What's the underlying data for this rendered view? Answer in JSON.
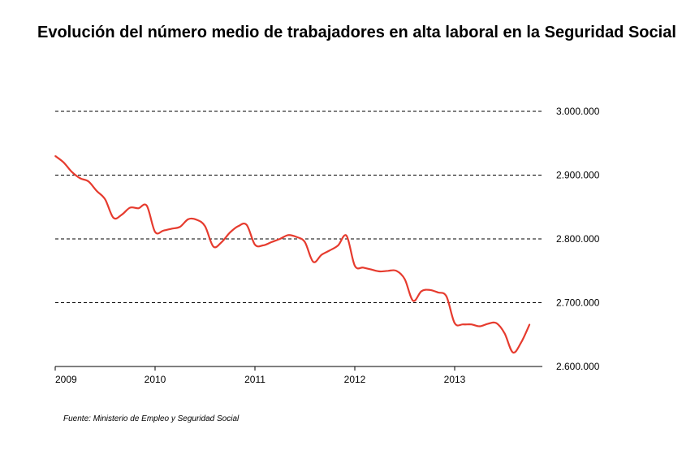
{
  "chart_data": {
    "type": "line",
    "title": "Evolución del número medio de trabajadores en alta laboral en la Seguridad Social",
    "xlabel": "",
    "ylabel": "",
    "x_tick_labels": [
      "2009",
      "2010",
      "2011",
      "2012",
      "2013"
    ],
    "y_tick_labels": [
      "2.600.000",
      "2.700.000",
      "2.800.000",
      "2.900.000",
      "3.000.000"
    ],
    "ylim": [
      2600000,
      3000000
    ],
    "x_start_year": 2009,
    "grid": "horizontal dashed",
    "series": [
      {
        "color": "#e63b2e",
        "points": [
          [
            "2009-01",
            2930000
          ],
          [
            "2009-02",
            2920000
          ],
          [
            "2009-03",
            2905000
          ],
          [
            "2009-04",
            2895000
          ],
          [
            "2009-05",
            2890000
          ],
          [
            "2009-06",
            2875000
          ],
          [
            "2009-07",
            2862000
          ],
          [
            "2009-08",
            2833000
          ],
          [
            "2009-09",
            2838000
          ],
          [
            "2009-10",
            2849000
          ],
          [
            "2009-11",
            2848000
          ],
          [
            "2009-12",
            2852000
          ],
          [
            "2010-01",
            2811000
          ],
          [
            "2010-02",
            2813000
          ],
          [
            "2010-03",
            2816000
          ],
          [
            "2010-04",
            2819000
          ],
          [
            "2010-05",
            2831000
          ],
          [
            "2010-06",
            2830000
          ],
          [
            "2010-07",
            2820000
          ],
          [
            "2010-08",
            2788000
          ],
          [
            "2010-09",
            2795000
          ],
          [
            "2010-10",
            2810000
          ],
          [
            "2010-11",
            2820000
          ],
          [
            "2010-12",
            2822000
          ],
          [
            "2011-01",
            2791000
          ],
          [
            "2011-02",
            2790000
          ],
          [
            "2011-03",
            2795000
          ],
          [
            "2011-04",
            2800000
          ],
          [
            "2011-05",
            2806000
          ],
          [
            "2011-06",
            2803000
          ],
          [
            "2011-07",
            2795000
          ],
          [
            "2011-08",
            2764000
          ],
          [
            "2011-09",
            2775000
          ],
          [
            "2011-10",
            2782000
          ],
          [
            "2011-11",
            2790000
          ],
          [
            "2011-12",
            2805000
          ],
          [
            "2012-01",
            2758000
          ],
          [
            "2012-02",
            2755000
          ],
          [
            "2012-03",
            2752000
          ],
          [
            "2012-04",
            2749000
          ],
          [
            "2012-05",
            2750000
          ],
          [
            "2012-06",
            2750000
          ],
          [
            "2012-07",
            2737000
          ],
          [
            "2012-08",
            2703000
          ],
          [
            "2012-09",
            2718000
          ],
          [
            "2012-10",
            2720000
          ],
          [
            "2012-11",
            2716000
          ],
          [
            "2012-12",
            2710000
          ],
          [
            "2013-01",
            2668000
          ],
          [
            "2013-02",
            2666000
          ],
          [
            "2013-03",
            2666000
          ],
          [
            "2013-04",
            2663000
          ],
          [
            "2013-05",
            2667000
          ],
          [
            "2013-06",
            2668000
          ],
          [
            "2013-07",
            2652000
          ],
          [
            "2013-08",
            2622000
          ],
          [
            "2013-09",
            2638000
          ],
          [
            "2013-10",
            2666000
          ]
        ]
      }
    ]
  },
  "footer": {
    "source": "Fuente: Ministerio de Empleo y Seguridad Social"
  }
}
